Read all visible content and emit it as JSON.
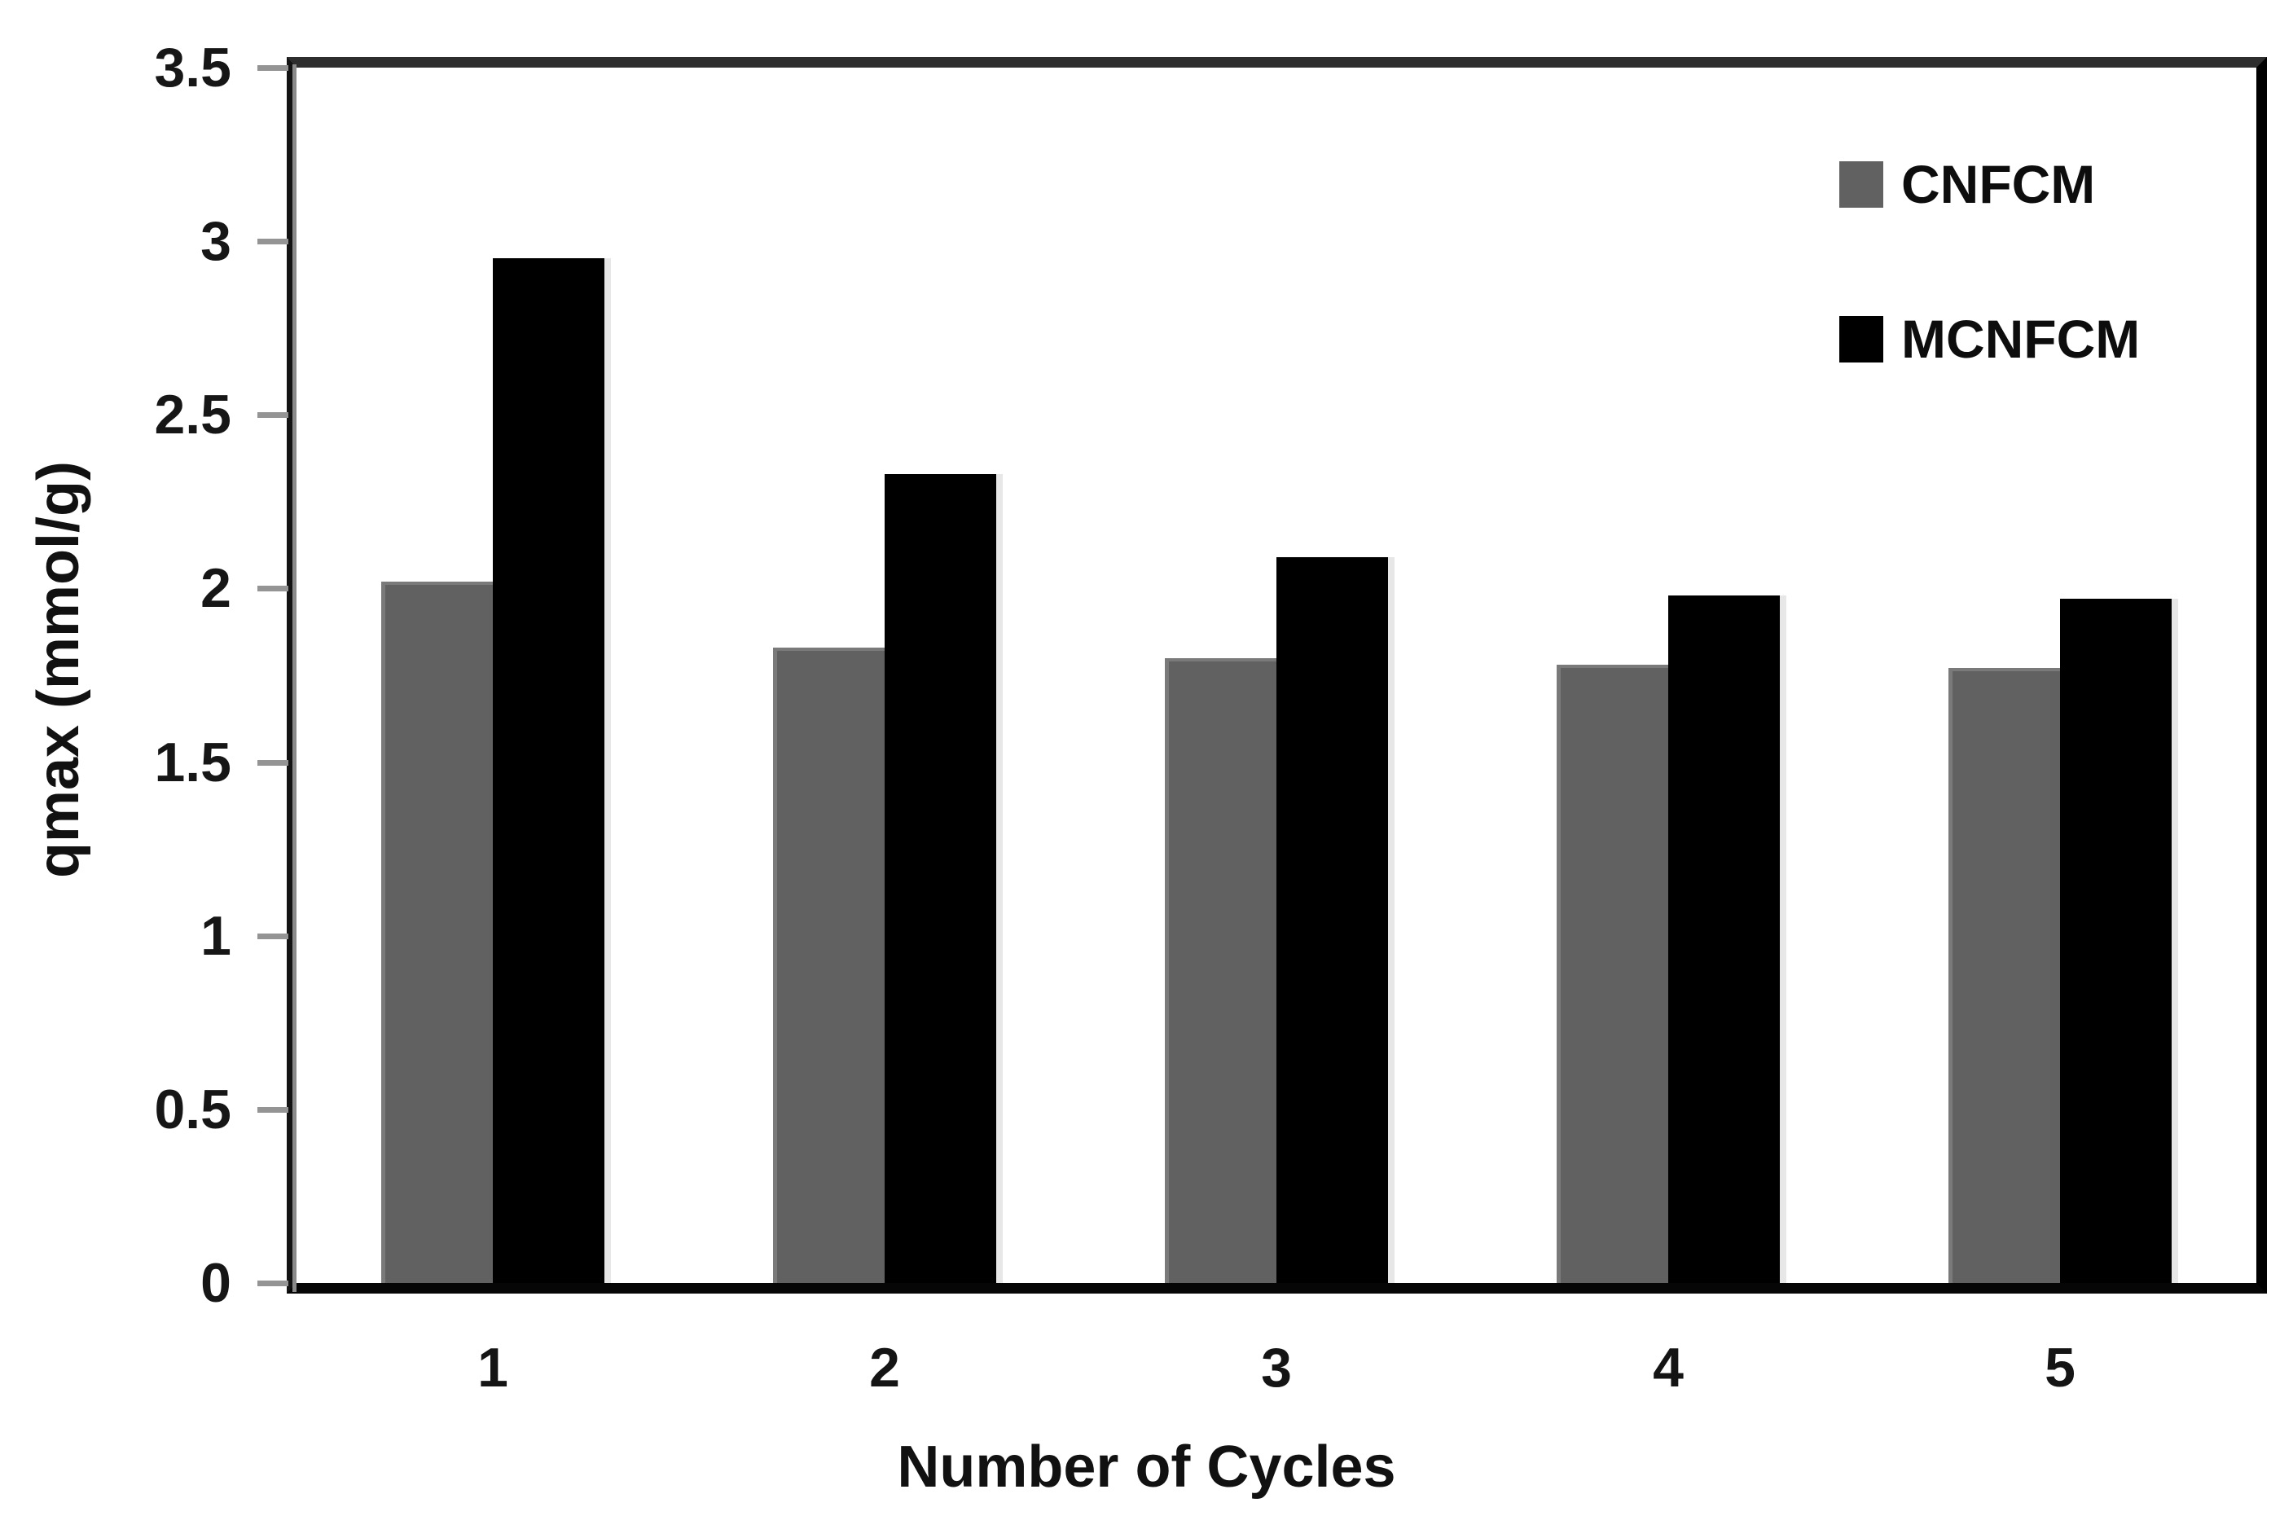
{
  "chart_data": {
    "type": "bar",
    "title": "",
    "xlabel": "Number of Cycles",
    "ylabel": "qmax (mmol/g)",
    "categories": [
      "1",
      "2",
      "3",
      "4",
      "5"
    ],
    "series": [
      {
        "name": "CNFCM",
        "color": "#616161",
        "values": [
          2.02,
          1.83,
          1.8,
          1.78,
          1.77
        ]
      },
      {
        "name": "MCNFCM",
        "color": "#000000",
        "values": [
          2.95,
          2.33,
          2.09,
          1.98,
          1.97
        ]
      }
    ],
    "ylim": [
      0,
      3.5
    ],
    "ytick_step": 0.5,
    "ytick_labels": [
      "3.5",
      "3",
      "2.5",
      "2",
      "1.5",
      "1",
      "0.5",
      "0"
    ],
    "grid": false,
    "legend_position": "upper-right",
    "axis_color": "#1a1a1a",
    "tick_mark_color": "#949494"
  }
}
